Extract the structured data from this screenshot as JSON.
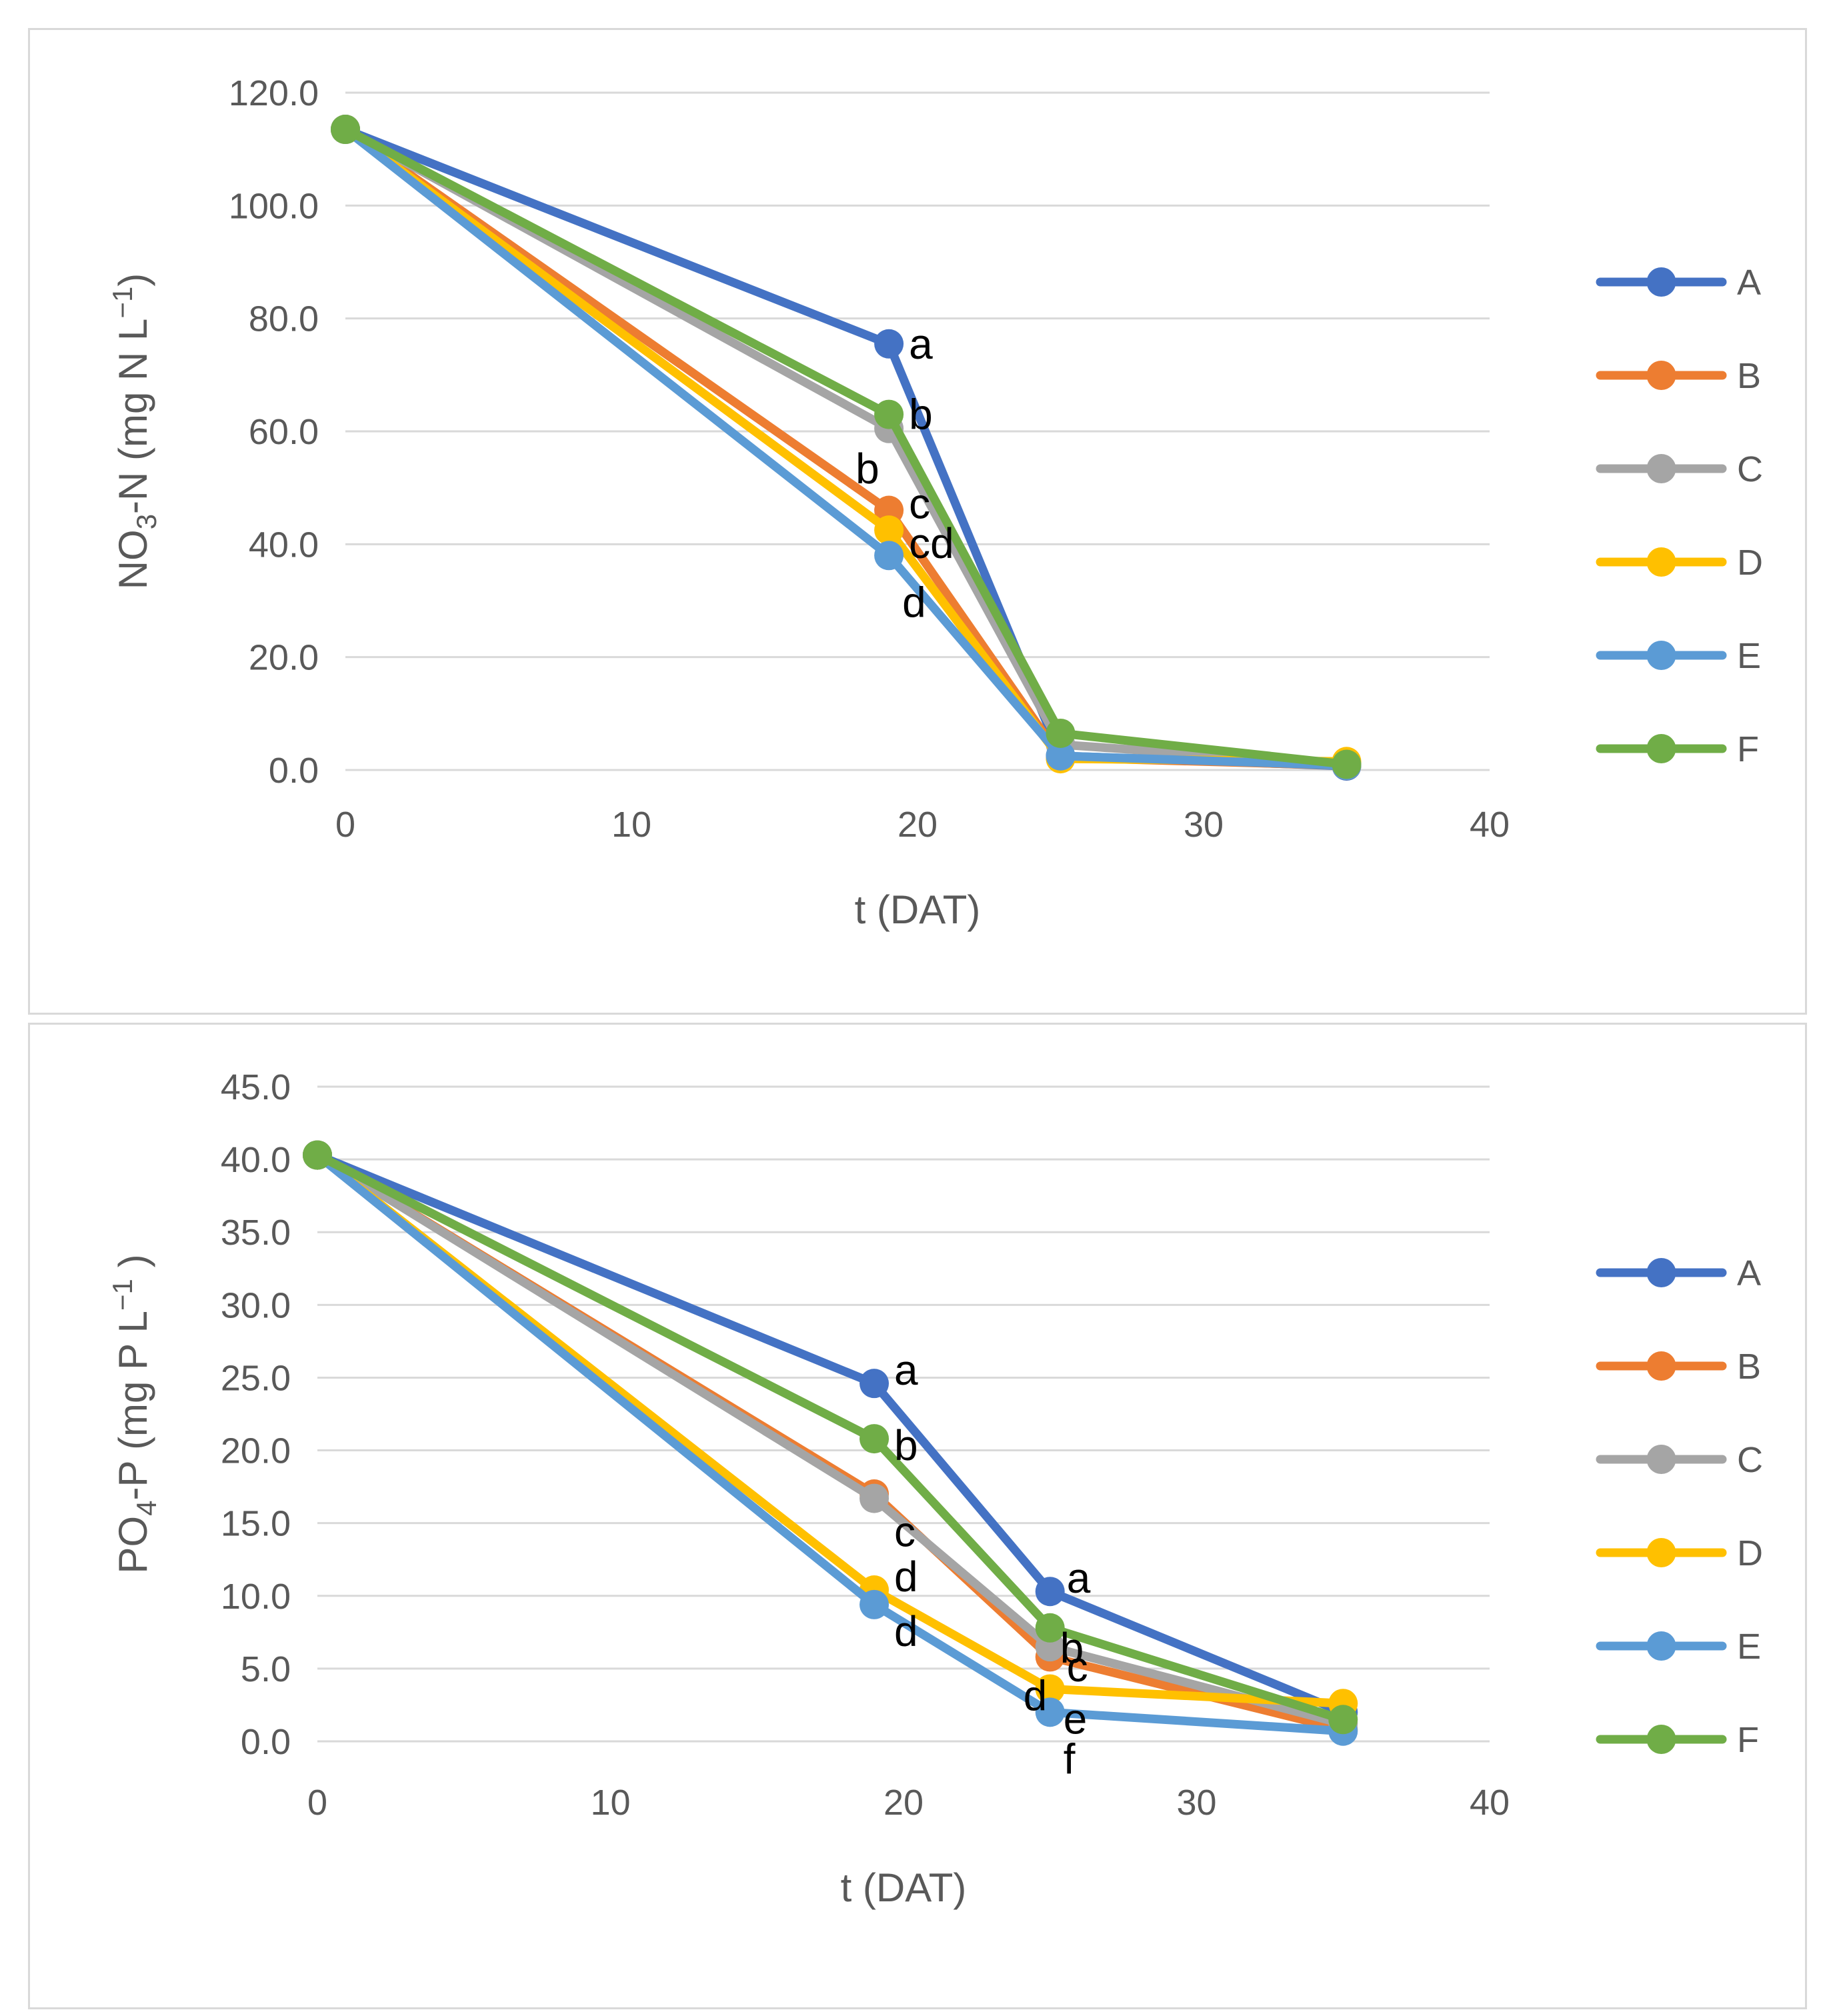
{
  "legend": [
    {
      "name": "A",
      "color": "#4472C4"
    },
    {
      "name": "B",
      "color": "#ED7D31"
    },
    {
      "name": "C",
      "color": "#A5A5A5"
    },
    {
      "name": "D",
      "color": "#FFC000"
    },
    {
      "name": "E",
      "color": "#5B9BD5"
    },
    {
      "name": "F",
      "color": "#70AD47"
    }
  ],
  "chart_data": [
    {
      "type": "line",
      "xlabel": "t (DAT)",
      "ylabel": "NO3-N (mg N L−1)",
      "ylabel_parts": {
        "main": "NO",
        "sub": "3",
        "rest": "-N (mg N L",
        "sup": "−1",
        "end": ")"
      },
      "x_ticks": [
        "0",
        "10",
        "20",
        "30",
        "40"
      ],
      "y_ticks": [
        "0.0",
        "20.0",
        "40.0",
        "60.0",
        "80.0",
        "100.0",
        "120.0"
      ],
      "xlim": [
        0,
        40
      ],
      "ylim": [
        0,
        120
      ],
      "grid": true,
      "legend_position": "right",
      "x": [
        0,
        19,
        25,
        35
      ],
      "series": [
        {
          "name": "A",
          "values": [
            113.5,
            75.5,
            2.5,
            0.7
          ]
        },
        {
          "name": "B",
          "values": [
            113.5,
            46.0,
            2.2,
            0.8
          ]
        },
        {
          "name": "C",
          "values": [
            113.5,
            60.5,
            4.5,
            1.0
          ]
        },
        {
          "name": "D",
          "values": [
            113.5,
            42.5,
            2.0,
            1.5
          ]
        },
        {
          "name": "E",
          "values": [
            113.5,
            38.0,
            2.5,
            0.8
          ]
        },
        {
          "name": "F",
          "values": [
            113.5,
            63.0,
            6.5,
            1.0
          ]
        }
      ],
      "annotations": [
        {
          "text": "a",
          "x": 19,
          "y": 75.5
        },
        {
          "text": "b",
          "x": 19,
          "y": 63.0
        },
        {
          "text": "b",
          "x": 19,
          "y": 60.5
        },
        {
          "text": "c",
          "x": 19,
          "y": 46.0
        },
        {
          "text": "cd",
          "x": 19,
          "y": 42.5
        },
        {
          "text": "d",
          "x": 19,
          "y": 38.0
        }
      ]
    },
    {
      "type": "line",
      "xlabel": "t (DAT)",
      "ylabel": "PO4-P (mg P L−1 )",
      "ylabel_parts": {
        "main": "PO",
        "sub": "4",
        "rest": "-P (mg P L",
        "sup": "−1",
        "end": " )"
      },
      "x_ticks": [
        "0",
        "10",
        "20",
        "30",
        "40"
      ],
      "y_ticks": [
        "0.0",
        "5.0",
        "10.0",
        "15.0",
        "20.0",
        "25.0",
        "30.0",
        "35.0",
        "40.0",
        "45.0"
      ],
      "xlim": [
        0,
        40
      ],
      "ylim": [
        0,
        45
      ],
      "grid": true,
      "legend_position": "right",
      "x": [
        0,
        19,
        25,
        35
      ],
      "series": [
        {
          "name": "A",
          "values": [
            40.3,
            24.6,
            10.3,
            2.0
          ]
        },
        {
          "name": "B",
          "values": [
            40.3,
            17.0,
            5.8,
            0.8
          ]
        },
        {
          "name": "C",
          "values": [
            40.3,
            16.7,
            6.5,
            1.2
          ]
        },
        {
          "name": "D",
          "values": [
            40.3,
            10.4,
            3.6,
            2.6
          ]
        },
        {
          "name": "E",
          "values": [
            40.3,
            9.4,
            2.0,
            0.7
          ]
        },
        {
          "name": "F",
          "values": [
            40.3,
            20.8,
            7.8,
            1.5
          ]
        }
      ],
      "annotations": [
        {
          "text": "a",
          "x": 19,
          "y": 24.6
        },
        {
          "text": "b",
          "x": 19,
          "y": 20.8
        },
        {
          "text": "c",
          "x": 19,
          "y": 16.7
        },
        {
          "text": "d",
          "x": 19,
          "y": 10.4
        },
        {
          "text": "d",
          "x": 19,
          "y": 9.4
        },
        {
          "text": "a",
          "x": 25,
          "y": 10.3
        },
        {
          "text": "b",
          "x": 25,
          "y": 7.8
        },
        {
          "text": "c",
          "x": 25,
          "y": 6.5
        },
        {
          "text": "d",
          "x": 25,
          "y": 3.6
        },
        {
          "text": "e",
          "x": 25,
          "y": 2.0
        },
        {
          "text": "f",
          "x": 25,
          "y": 2.0
        }
      ]
    }
  ]
}
